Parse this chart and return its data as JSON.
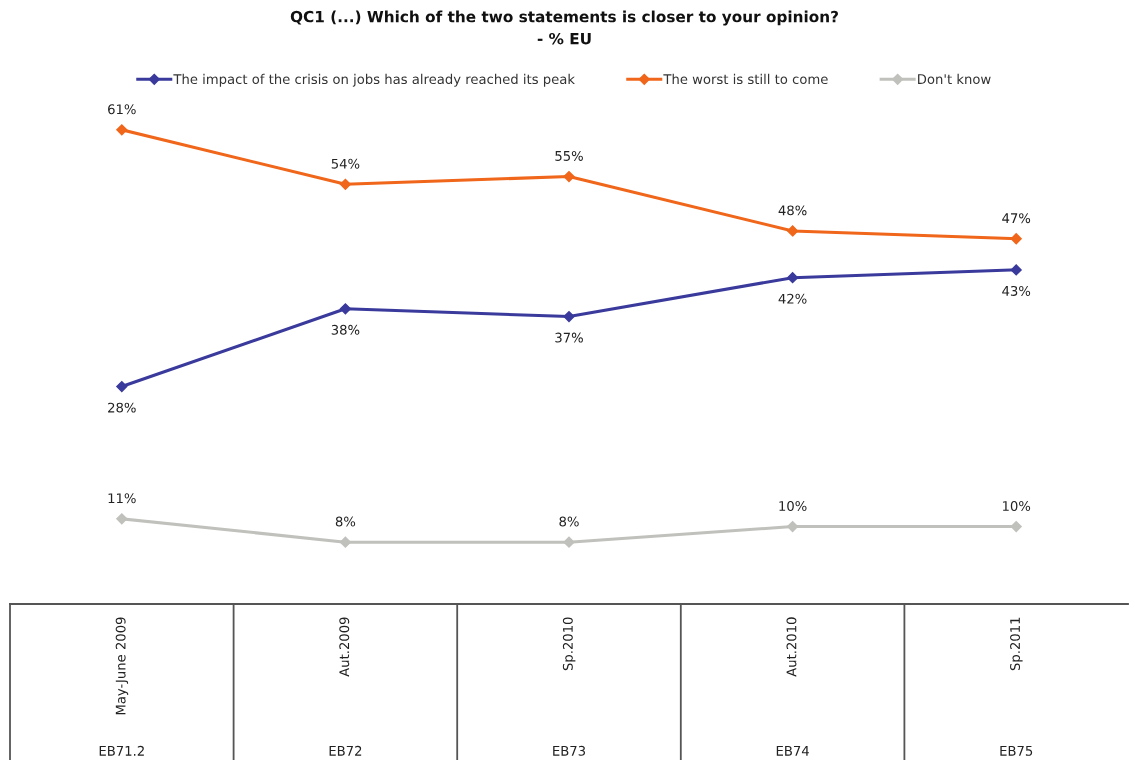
{
  "chart_data": {
    "type": "line",
    "title": "QC1 (...) Which of the two statements is closer to your opinion?",
    "subtitle": "- % EU",
    "categories": [
      "May-June 2009",
      "Aut.2009",
      "Sp.2010",
      "Aut.2010",
      "Sp.2011"
    ],
    "series": [
      {
        "name": "The impact of the crisis on jobs has already reached its peak",
        "color": "#3a3a9c",
        "values": [
          28,
          38,
          37,
          42,
          43
        ],
        "value_labels": [
          "28%",
          "38%",
          "37%",
          "42%",
          "43%"
        ]
      },
      {
        "name": "The worst is still to come",
        "color": "#f0661a",
        "values": [
          61,
          54,
          55,
          48,
          47
        ],
        "value_labels": [
          "61%",
          "54%",
          "55%",
          "48%",
          "47%"
        ]
      },
      {
        "name": "Don't know",
        "color": "#c0c0bc",
        "values": [
          11,
          8,
          8,
          10,
          10
        ],
        "value_labels": [
          "11%",
          "8%",
          "8%",
          "10%",
          "10%"
        ]
      }
    ],
    "annotations": [
      "EB71.2",
      "EB72",
      "EB73",
      "EB74",
      "EB75"
    ],
    "legend": "top",
    "marker": "diamond",
    "line_style": "solid",
    "tick_labels": "x"
  }
}
